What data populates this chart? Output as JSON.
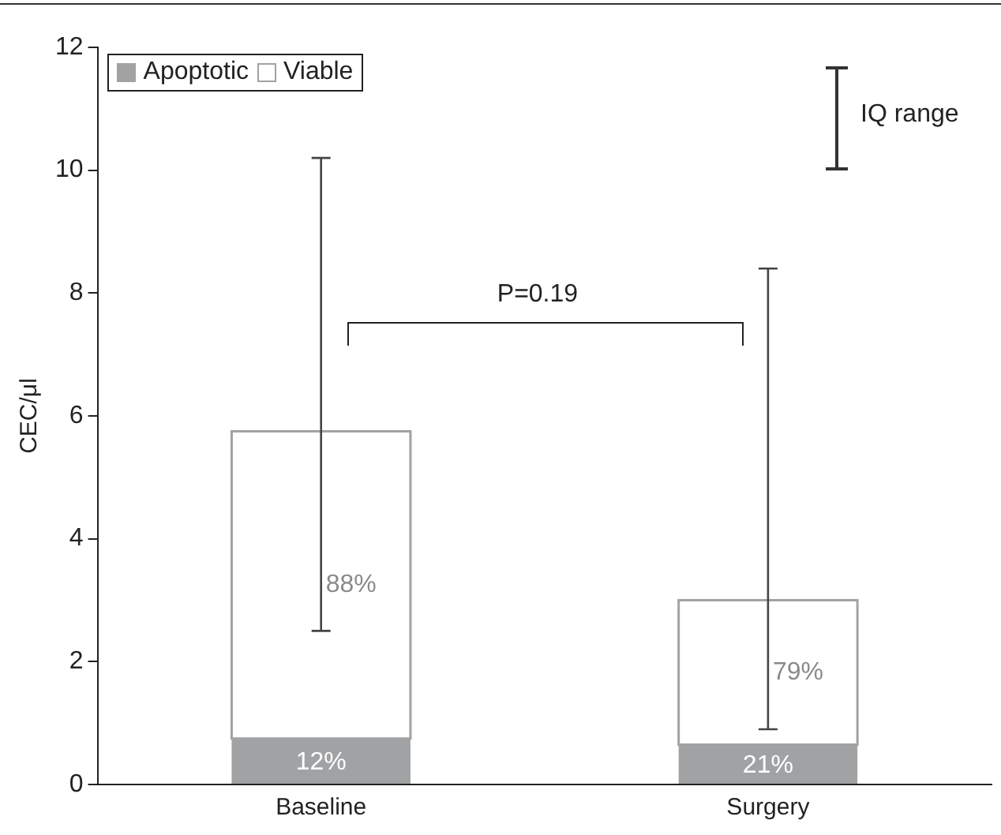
{
  "chart_data": {
    "type": "bar",
    "stacked": true,
    "ylabel": "CEC/μl",
    "categories": [
      "Baseline",
      "Surgery"
    ],
    "series": [
      {
        "name": "Apoptotic",
        "color": "#a0a2a4",
        "values": [
          0.75,
          0.65
        ]
      },
      {
        "name": "Viable",
        "color": "#a0a2a4",
        "values": [
          5.0,
          2.35
        ],
        "errors": [
          [
            2.5,
            10.2
          ],
          [
            0.9,
            8.4
          ]
        ]
      }
    ],
    "ylim": [
      0,
      12
    ],
    "yticks": [
      0,
      2,
      4,
      6,
      8,
      10,
      12
    ],
    "grid": false,
    "legend": "top left",
    "annotations": [
      "P=0.19",
      "IQ range",
      "12%",
      "21%",
      "88%",
      "79%"
    ]
  }
}
